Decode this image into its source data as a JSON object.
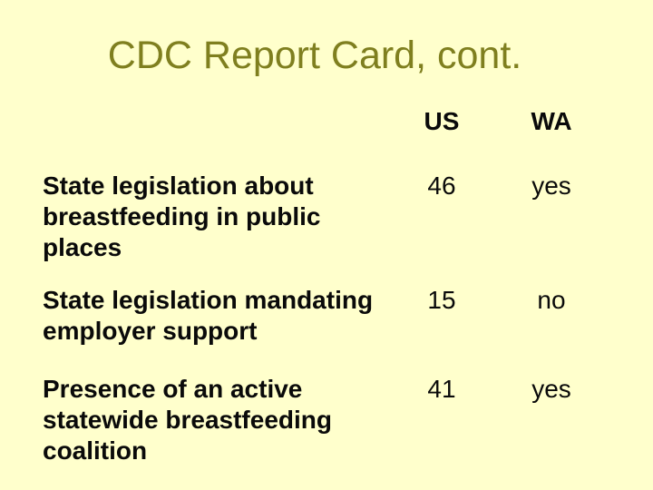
{
  "slide": {
    "title": "CDC Report Card, cont.",
    "colors": {
      "background": "#FFFFCC",
      "title_text": "#7F7F1F",
      "body_text": "#0A0A0A"
    },
    "table": {
      "columns": [
        "US",
        "WA"
      ],
      "rows": [
        {
          "label": "State legislation about breastfeeding in public places",
          "us": "46",
          "wa": "yes"
        },
        {
          "label": "State legislation mandating employer support",
          "us": "15",
          "wa": "no"
        },
        {
          "label": "Presence of an active statewide breastfeeding coalition",
          "us": "41",
          "wa": "yes"
        }
      ]
    }
  }
}
